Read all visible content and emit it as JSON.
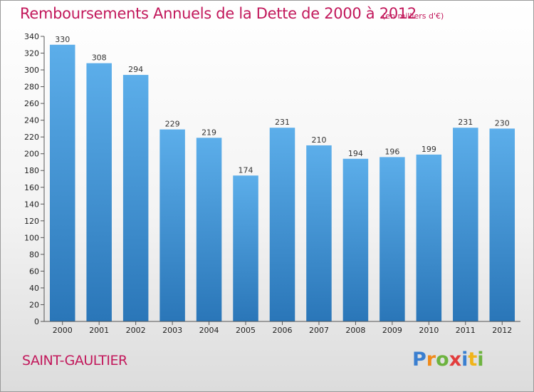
{
  "title": "Remboursements Annuels de la Dette de 2000 à 2012",
  "subtitle": "(en milliers d'€)",
  "commune": "SAINT-GAULTIER",
  "logo": {
    "letters": [
      "P",
      "r",
      "o",
      "x",
      "i",
      "t",
      "i"
    ]
  },
  "colors": {
    "title": "#c2185b",
    "bar_top": "#5caeea",
    "bar_bottom": "#2a76b8"
  },
  "chart_data": {
    "type": "bar",
    "title": "Remboursements Annuels de la Dette de 2000 à 2012",
    "subtitle": "(en milliers d'€)",
    "categories": [
      "2000",
      "2001",
      "2002",
      "2003",
      "2004",
      "2005",
      "2006",
      "2007",
      "2008",
      "2009",
      "2010",
      "2011",
      "2012"
    ],
    "values": [
      330,
      308,
      294,
      229,
      219,
      174,
      231,
      210,
      194,
      196,
      199,
      231,
      230
    ],
    "ylim": [
      0,
      340
    ],
    "yticks": [
      0,
      20,
      40,
      60,
      80,
      100,
      120,
      140,
      160,
      180,
      200,
      220,
      240,
      260,
      280,
      300,
      320,
      340
    ],
    "grid": false,
    "data_labels": true
  }
}
